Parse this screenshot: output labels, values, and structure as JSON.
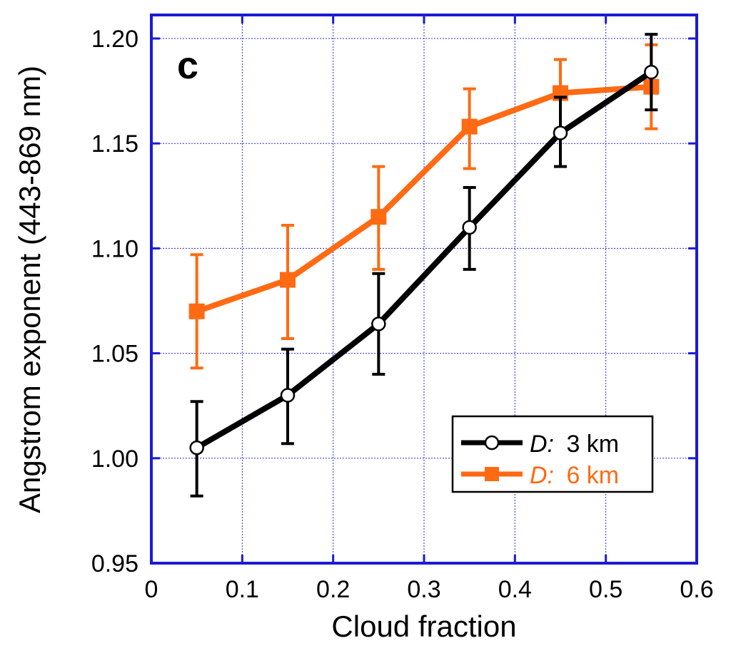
{
  "chart_data": {
    "type": "line",
    "panel_label": "c",
    "xlabel": "Cloud fraction",
    "ylabel": "Angstrom exponent (443-869 nm)",
    "xlim": [
      0,
      0.6
    ],
    "ylim": [
      0.95,
      1.21
    ],
    "x_ticks": [
      0,
      0.1,
      0.2,
      0.3,
      0.4,
      0.5,
      0.6
    ],
    "x_tick_labels": [
      "0",
      "0.1",
      "0.2",
      "0.3",
      "0.4",
      "0.5",
      "0.6"
    ],
    "y_ticks": [
      0.95,
      1.0,
      1.05,
      1.1,
      1.15,
      1.2
    ],
    "y_tick_labels": [
      "0.95",
      "1.00",
      "1.05",
      "1.10",
      "1.15",
      "1.20"
    ],
    "grid": true,
    "legend_position": "bottom-right",
    "series": [
      {
        "legend_prefix": "D:",
        "legend_suffix": "3 km",
        "color": "#000000",
        "marker": "open-circle",
        "x": [
          0.05,
          0.15,
          0.25,
          0.35,
          0.45,
          0.55
        ],
        "y": [
          1.005,
          1.03,
          1.064,
          1.11,
          1.155,
          1.184
        ],
        "err_low": [
          0.982,
          1.007,
          1.04,
          1.09,
          1.139,
          1.166
        ],
        "err_high": [
          1.027,
          1.052,
          1.088,
          1.129,
          1.172,
          1.202
        ]
      },
      {
        "legend_prefix": "D:",
        "legend_suffix": "6 km",
        "color": "#ff6a13",
        "marker": "filled-square",
        "x": [
          0.05,
          0.15,
          0.25,
          0.35,
          0.45,
          0.55
        ],
        "y": [
          1.07,
          1.085,
          1.115,
          1.158,
          1.174,
          1.177
        ],
        "err_low": [
          1.043,
          1.057,
          1.09,
          1.138,
          1.157,
          1.157
        ],
        "err_high": [
          1.097,
          1.111,
          1.139,
          1.176,
          1.19,
          1.197
        ]
      }
    ]
  }
}
